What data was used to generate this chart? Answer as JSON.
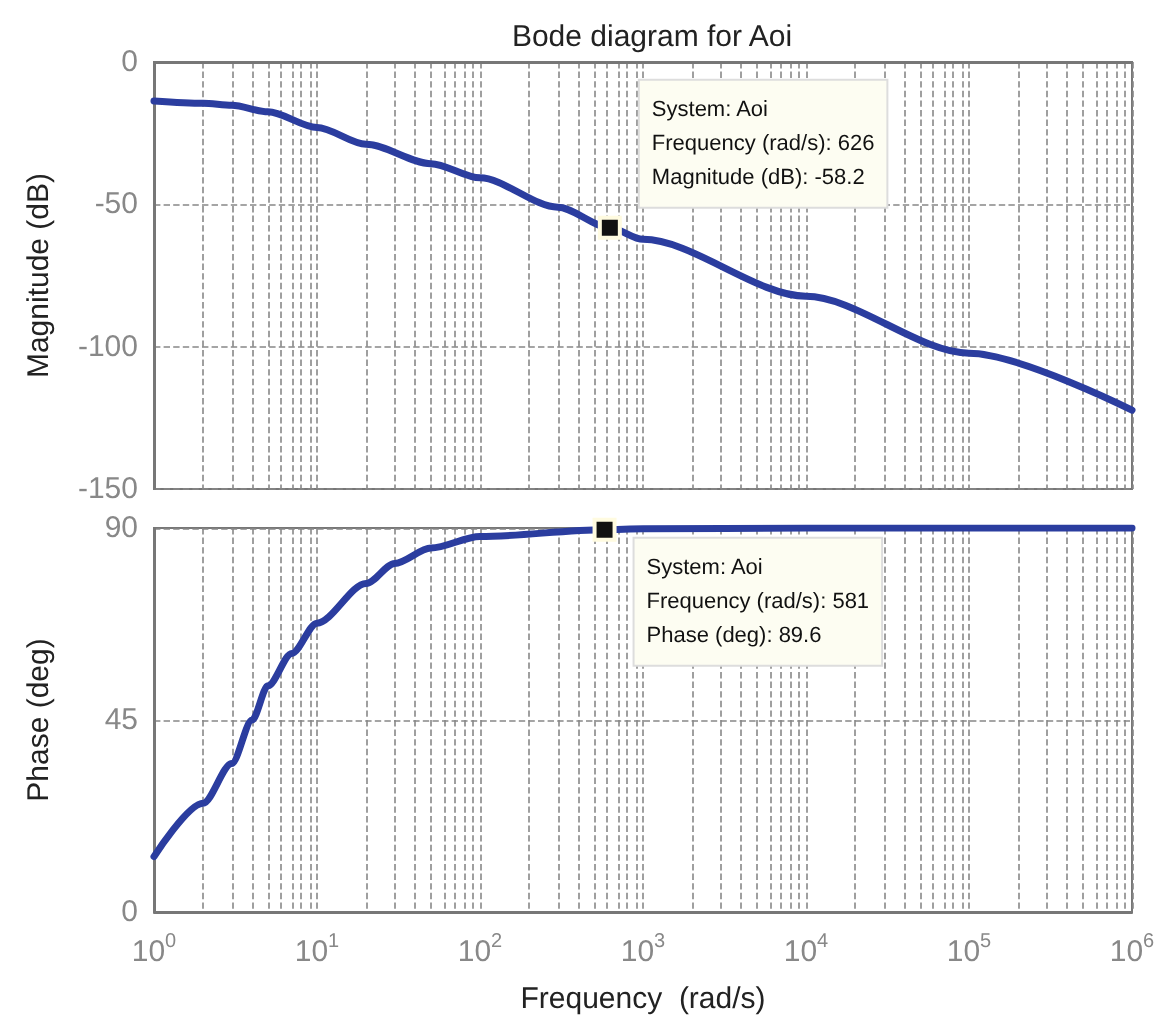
{
  "chart_data": [
    {
      "type": "line",
      "title": "Bode diagram for Aoi",
      "ylabel": "Magnitude (dB)",
      "log": "x",
      "grid": true,
      "tick_labels": "y",
      "x": [
        1,
        2,
        3,
        5,
        10,
        20,
        50,
        100,
        300,
        626,
        1000,
        10000,
        100000,
        1000000
      ],
      "series": [
        {
          "color": "#2b3d9f",
          "values": [
            -13.7,
            -14.5,
            -15.2,
            -17.5,
            -23,
            -28.9,
            -35.7,
            -40.7,
            -51,
            -58.2,
            -62.3,
            -82.3,
            -102.3,
            -122.3
          ]
        }
      ],
      "xlim": [
        1,
        1000000
      ],
      "ylim": [
        -150,
        0
      ],
      "yticks": [
        -150,
        -100,
        -50,
        0
      ],
      "annotations": [
        {
          "text": "System: Aoi\nFrequency (rad/s): 626\nMagnitude (dB): -58.2",
          "x": 626,
          "y": -58.2
        }
      ]
    },
    {
      "type": "line",
      "ylabel": "Phase (deg)",
      "xlabel": "Frequency  (rad/s)",
      "log": "x",
      "grid": true,
      "x": [
        1,
        2,
        3,
        4,
        5,
        7,
        10,
        20,
        30,
        50,
        100,
        581,
        1000,
        10000,
        100000,
        1000000
      ],
      "series": [
        {
          "color": "#2b3d9f",
          "values": [
            13,
            25.5,
            34.8,
            45,
            53,
            60.6,
            67.7,
            77,
            81.7,
            85.3,
            88,
            89.6,
            89.8,
            90,
            90,
            90
          ]
        }
      ],
      "xlim": [
        1,
        1000000
      ],
      "xticks": [
        {
          "value": 1,
          "label": "10$^{0}$"
        },
        {
          "value": 10,
          "label": "10$^{1}$"
        },
        {
          "value": 100,
          "label": "10$^{2}$"
        },
        {
          "value": 1000,
          "label": "10$^{3}$"
        },
        {
          "value": 10000,
          "label": "10$^{4}$"
        },
        {
          "value": 100000,
          "label": "10$^{5}$"
        },
        {
          "value": 1000000,
          "label": "10$^{6}$"
        }
      ],
      "ylim": [
        0,
        90
      ],
      "yticks": [
        0,
        45,
        90
      ],
      "annotations": [
        {
          "text": "System: Aoi\nFrequency (rad/s): 581\nPhase (deg): 89.6",
          "x": 581,
          "y": 89.6
        }
      ]
    }
  ]
}
